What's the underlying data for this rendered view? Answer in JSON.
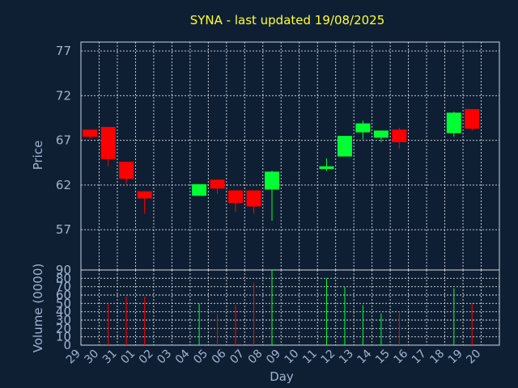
{
  "chart_data": {
    "type": "candlestick",
    "title": "SYNA - last updated 19/08/2025",
    "xlabel": "Day",
    "price_panel": {
      "ylabel": "Price",
      "yticks": [
        57,
        62,
        67,
        72,
        77
      ],
      "ylim": [
        52.5,
        78
      ],
      "grid": true
    },
    "volume_panel": {
      "ylabel": "Volume (0000)",
      "yticks": [
        0,
        10,
        20,
        30,
        40,
        50,
        60,
        70,
        80,
        90
      ],
      "ylim": [
        0,
        90
      ],
      "grid": true
    },
    "x_labels": [
      "29",
      "30",
      "31",
      "01",
      "02",
      "03",
      "04",
      "05",
      "06",
      "07",
      "08",
      "09",
      "10",
      "11",
      "12",
      "13",
      "14",
      "15",
      "16",
      "17",
      "18",
      "19",
      "20"
    ],
    "candles": [
      {
        "day": "29",
        "open": 68.2,
        "high": 68.2,
        "low": 67.2,
        "close": 67.4,
        "volume": null
      },
      {
        "day": "30",
        "open": 68.5,
        "high": 68.5,
        "low": 64.1,
        "close": 64.9,
        "volume": 50
      },
      {
        "day": "31",
        "open": 64.6,
        "high": 64.6,
        "low": 62.2,
        "close": 62.7,
        "volume": 58
      },
      {
        "day": "01",
        "open": 61.3,
        "high": 61.3,
        "low": 58.8,
        "close": 60.5,
        "volume": 58
      },
      {
        "day": "04",
        "open": 60.8,
        "high": 62.1,
        "low": 60.8,
        "close": 62.1,
        "volume": 50
      },
      {
        "day": "05",
        "open": 62.6,
        "high": 62.6,
        "low": 61.0,
        "close": 61.6,
        "volume": 37
      },
      {
        "day": "06",
        "open": 61.4,
        "high": 61.4,
        "low": 59.0,
        "close": 60.0,
        "volume": 48
      },
      {
        "day": "07",
        "open": 61.4,
        "high": 61.4,
        "low": 58.8,
        "close": 59.6,
        "volume": 75
      },
      {
        "day": "08",
        "open": 61.5,
        "high": 63.6,
        "low": 58.0,
        "close": 63.5,
        "volume": 90
      },
      {
        "day": "11",
        "open": 63.8,
        "high": 65.0,
        "low": 63.6,
        "close": 64.1,
        "volume": 80
      },
      {
        "day": "12",
        "open": 65.2,
        "high": 67.5,
        "low": 65.2,
        "close": 67.5,
        "volume": 70
      },
      {
        "day": "13",
        "open": 67.9,
        "high": 69.2,
        "low": 67.1,
        "close": 68.9,
        "volume": 48
      },
      {
        "day": "14",
        "open": 67.3,
        "high": 68.1,
        "low": 66.8,
        "close": 68.1,
        "volume": 38
      },
      {
        "day": "15",
        "open": 68.2,
        "high": 68.4,
        "low": 66.1,
        "close": 66.8,
        "volume": 40
      },
      {
        "day": "18",
        "open": 67.8,
        "high": 70.2,
        "low": 67.4,
        "close": 70.1,
        "volume": 68
      },
      {
        "day": "19",
        "open": 70.5,
        "high": 70.5,
        "low": 68.1,
        "close": 68.3,
        "volume": 50
      }
    ],
    "colors": {
      "background": "#0f1f33",
      "up": "#00ff33",
      "down": "#ff0000",
      "title": "#ffff33",
      "axis_text": "#9fb4d0",
      "grid": "#d8dde6"
    }
  }
}
